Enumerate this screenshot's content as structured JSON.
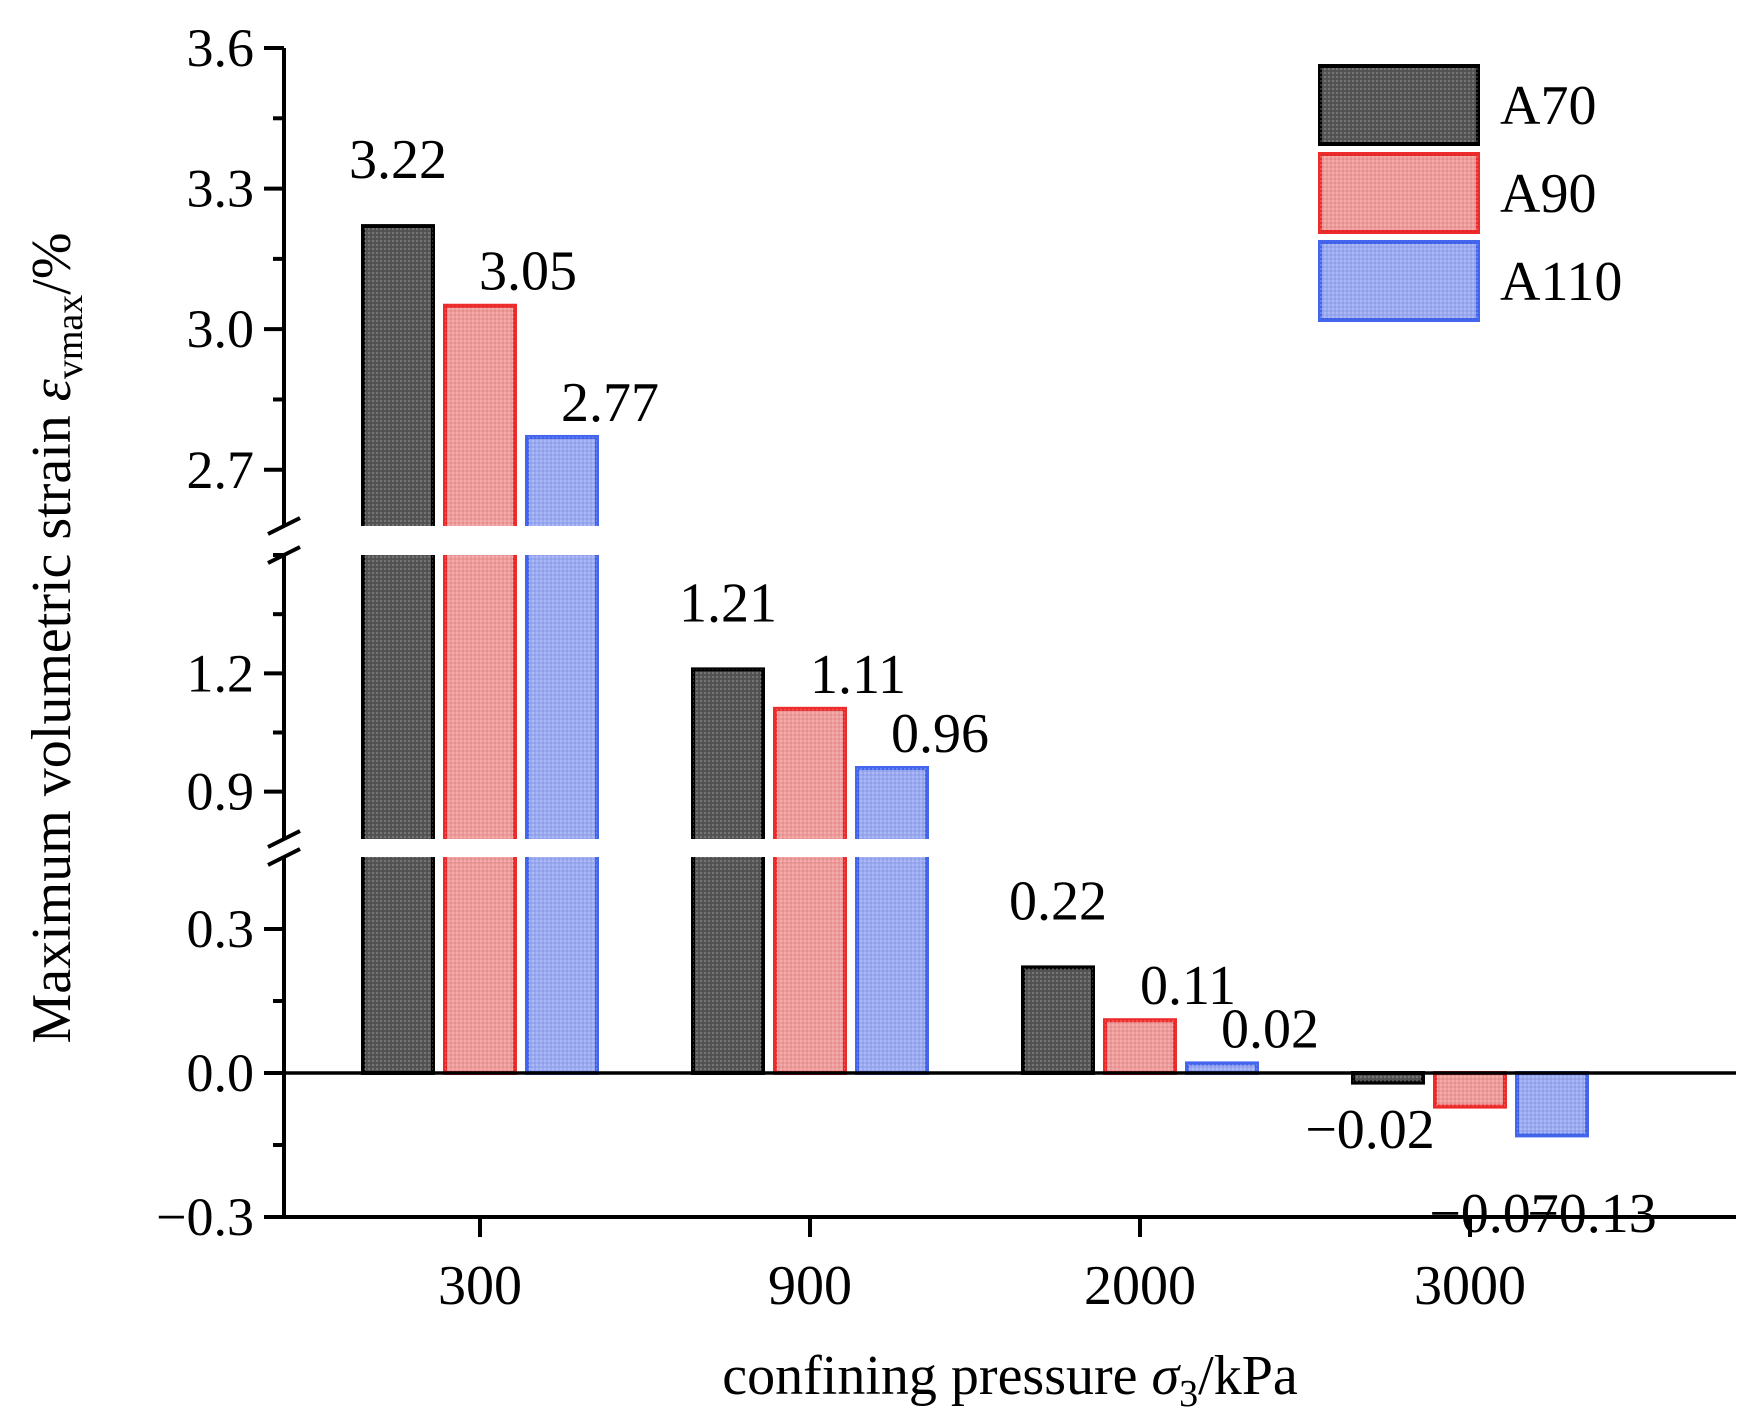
{
  "chart_data": {
    "type": "bar",
    "title": "",
    "xlabel": "confining pressure σ3/kPa",
    "ylabel": "Maximum volumetric strain εvmax/%",
    "x_axis_title": {
      "prefix": "confining pressure ",
      "symbol": "σ",
      "subscript": "3",
      "suffix": "/kPa"
    },
    "y_axis_title": {
      "prefix": "Maximum volumetric strain ",
      "symbol": "ε",
      "subscript": "vmax",
      "suffix": "/%"
    },
    "categories": [
      "300",
      "900",
      "2000",
      "3000"
    ],
    "series": [
      {
        "name": "A70",
        "values": [
          3.22,
          1.21,
          0.22,
          -0.02
        ],
        "labels": [
          "3.22",
          "1.21",
          "0.22",
          "−0.02"
        ],
        "fill": "#555555",
        "stroke": "#000000"
      },
      {
        "name": "A90",
        "values": [
          3.05,
          1.11,
          0.11,
          -0.07
        ],
        "labels": [
          "3.05",
          "1.11",
          "0.11",
          "−0.07"
        ],
        "fill": "#f09a9a",
        "stroke": "#ee2b2b"
      },
      {
        "name": "A110",
        "values": [
          2.77,
          0.96,
          0.02,
          -0.13
        ],
        "labels": [
          "2.77",
          "0.96",
          "0.02",
          "−0.13"
        ],
        "fill": "#9aaaf2",
        "stroke": "#4466ee"
      }
    ],
    "y_ticks": [
      "−0.3",
      "0.0",
      "0.3",
      "0.9",
      "1.2",
      "2.7",
      "3.0",
      "3.3",
      "3.6"
    ],
    "y_segments": [
      {
        "range": [
          -0.3,
          0.45
        ],
        "ticks": [
          -0.3,
          0.0,
          0.3
        ]
      },
      {
        "range": [
          0.78,
          1.5
        ],
        "ticks": [
          0.9,
          1.2
        ]
      },
      {
        "range": [
          2.58,
          3.6
        ],
        "ticks": [
          2.7,
          3.0,
          3.3,
          3.6
        ]
      }
    ],
    "axis_breaks": [
      [
        0.45,
        0.78
      ],
      [
        1.5,
        2.58
      ]
    ],
    "legend_position": "top-right",
    "grid": false
  }
}
